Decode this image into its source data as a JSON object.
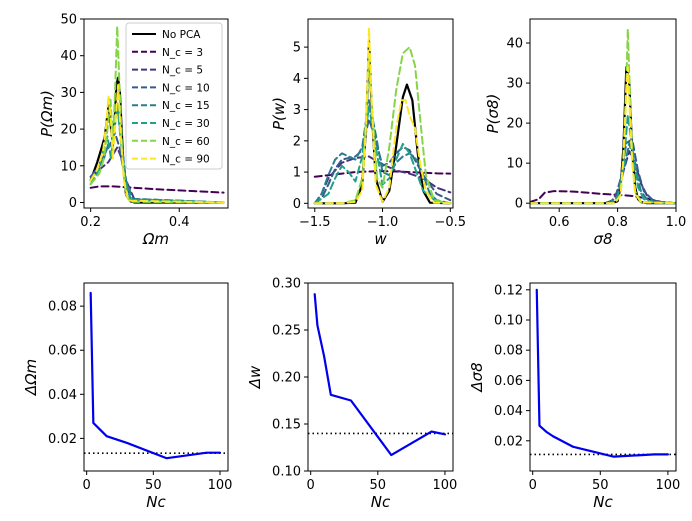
{
  "chart_data": [
    {
      "type": "line",
      "ylabel": "P(Ωm)",
      "xlabel": "Ωm",
      "xlim": [
        0.185,
        0.51
      ],
      "ylim": [
        -1.5,
        50
      ],
      "xticks": [
        0.2,
        0.4
      ],
      "xtick_labels": [
        "0.2",
        "0.4"
      ],
      "yticks": [
        0,
        10,
        20,
        30,
        40,
        50
      ],
      "ytick_labels": [
        "0",
        "10",
        "20",
        "30",
        "40",
        "50"
      ],
      "legend": {
        "placement": "top-right"
      },
      "series": [
        {
          "name": "No PCA",
          "color": "#000000",
          "style": "solid",
          "x": [
            0.2,
            0.215,
            0.225,
            0.232,
            0.238,
            0.242,
            0.246,
            0.25,
            0.254,
            0.258,
            0.262,
            0.266,
            0.27,
            0.275,
            0.28,
            0.29,
            0.3,
            0.32,
            0.5
          ],
          "y": [
            6,
            11,
            15,
            18,
            24,
            28,
            20,
            16,
            22,
            32,
            34,
            30,
            20,
            8,
            2,
            0.3,
            0,
            0,
            0
          ]
        },
        {
          "name": "N_c = 3",
          "color": "#440154",
          "style": "dashed",
          "x": [
            0.2,
            0.22,
            0.25,
            0.3,
            0.35,
            0.4,
            0.45,
            0.5
          ],
          "y": [
            4,
            4.4,
            4.4,
            4,
            3.6,
            3.3,
            3,
            2.7
          ]
        },
        {
          "name": "N_c = 5",
          "color": "#46337e",
          "style": "dashed",
          "x": [
            0.2,
            0.22,
            0.24,
            0.25,
            0.26,
            0.27,
            0.28,
            0.3,
            0.5
          ],
          "y": [
            7,
            9,
            11,
            13,
            15,
            12,
            6,
            0.5,
            0
          ]
        },
        {
          "name": "N_c = 10",
          "color": "#365c8d",
          "style": "dashed",
          "x": [
            0.2,
            0.22,
            0.235,
            0.245,
            0.255,
            0.265,
            0.275,
            0.29,
            0.5
          ],
          "y": [
            7,
            10,
            14,
            16,
            19,
            15,
            8,
            1,
            0
          ]
        },
        {
          "name": "N_c = 15",
          "color": "#277f8e",
          "style": "dashed",
          "x": [
            0.2,
            0.215,
            0.23,
            0.24,
            0.25,
            0.26,
            0.27,
            0.28,
            0.295,
            0.5
          ],
          "y": [
            6,
            9,
            12,
            16,
            15,
            27,
            16,
            6,
            1,
            0
          ]
        },
        {
          "name": "N_c = 30",
          "color": "#1fa187",
          "style": "dashed",
          "x": [
            0.2,
            0.215,
            0.228,
            0.238,
            0.246,
            0.253,
            0.26,
            0.268,
            0.278,
            0.29,
            0.5
          ],
          "y": [
            5,
            8,
            14,
            18,
            12,
            20,
            27,
            17,
            6,
            0.8,
            0
          ]
        },
        {
          "name": "N_c = 60",
          "color": "#86d549",
          "style": "dashed",
          "x": [
            0.2,
            0.22,
            0.23,
            0.238,
            0.245,
            0.25,
            0.255,
            0.26,
            0.265,
            0.272,
            0.28,
            0.29,
            0.5
          ],
          "y": [
            5,
            8,
            12,
            20,
            28,
            16,
            30,
            48,
            32,
            12,
            2,
            0.2,
            0
          ]
        },
        {
          "name": "N_c = 90",
          "color": "#fde725",
          "style": "dashed",
          "x": [
            0.2,
            0.215,
            0.228,
            0.236,
            0.24,
            0.245,
            0.25,
            0.256,
            0.262,
            0.268,
            0.275,
            0.285,
            0.5
          ],
          "y": [
            6,
            9,
            14,
            22,
            29,
            24,
            12,
            22,
            32,
            18,
            6,
            0.5,
            0
          ]
        }
      ]
    },
    {
      "type": "line",
      "ylabel": "P(w)",
      "xlabel": "w",
      "xlim": [
        -1.55,
        -0.48
      ],
      "ylim": [
        -0.15,
        5.9
      ],
      "xticks": [
        -1.5,
        -1.0,
        -0.5
      ],
      "xtick_labels": [
        "−1.5",
        "−1.0",
        "−0.5"
      ],
      "yticks": [
        0,
        1,
        2,
        3,
        4,
        5
      ],
      "ytick_labels": [
        "0",
        "1",
        "2",
        "3",
        "4",
        "5"
      ],
      "series": [
        {
          "name": "No PCA",
          "color": "#000000",
          "style": "solid",
          "x": [
            -1.5,
            -1.3,
            -1.2,
            -1.15,
            -1.12,
            -1.1,
            -1.08,
            -1.05,
            -1.0,
            -0.95,
            -0.9,
            -0.85,
            -0.82,
            -0.78,
            -0.74,
            -0.7,
            -0.65,
            -0.5
          ],
          "y": [
            0,
            0,
            0.02,
            0.6,
            2.5,
            5.2,
            3,
            0.8,
            0.05,
            0.4,
            1.8,
            3.4,
            3.8,
            3.3,
            1.6,
            0.4,
            0.02,
            0
          ]
        },
        {
          "name": "N_c = 3",
          "color": "#440154",
          "style": "dashed",
          "x": [
            -1.5,
            -1.4,
            -1.3,
            -1.2,
            -1.1,
            -1.0,
            -0.9,
            -0.8,
            -0.7,
            -0.6,
            -0.5
          ],
          "y": [
            0.85,
            0.9,
            0.95,
            1.0,
            1.02,
            1.03,
            1.02,
            1.0,
            0.98,
            0.96,
            0.95
          ]
        },
        {
          "name": "N_c = 5",
          "color": "#46337e",
          "style": "dashed",
          "x": [
            -1.5,
            -1.45,
            -1.4,
            -1.3,
            -1.2,
            -1.1,
            -1.0,
            -0.9,
            -0.8,
            -0.7,
            -0.6,
            -0.5
          ],
          "y": [
            0,
            0.3,
            0.8,
            1.3,
            1.45,
            1.5,
            1.25,
            1.05,
            0.95,
            0.8,
            0.5,
            0.35
          ]
        },
        {
          "name": "N_c = 10",
          "color": "#365c8d",
          "style": "dashed",
          "x": [
            -1.5,
            -1.45,
            -1.4,
            -1.35,
            -1.3,
            -1.2,
            -1.15,
            -1.1,
            -1.05,
            -1.0,
            -0.95,
            -0.9,
            -0.85,
            -0.8,
            -0.75,
            -0.7,
            -0.6,
            -0.5
          ],
          "y": [
            0,
            0.15,
            0.6,
            1.1,
            1.4,
            1.5,
            1.7,
            2.7,
            2.0,
            1.2,
            1.3,
            1.6,
            1.8,
            1.7,
            1.3,
            0.9,
            0.3,
            0.1
          ]
        },
        {
          "name": "N_c = 15",
          "color": "#277f8e",
          "style": "dashed",
          "x": [
            -1.5,
            -1.45,
            -1.4,
            -1.35,
            -1.3,
            -1.25,
            -1.2,
            -1.15,
            -1.1,
            -1.05,
            -1.0,
            -0.95,
            -0.9,
            -0.85,
            -0.8,
            -0.75,
            -0.7,
            -0.65,
            -0.6,
            -0.5
          ],
          "y": [
            0,
            0.3,
            0.9,
            1.4,
            1.6,
            1.5,
            1.4,
            1.8,
            3.3,
            2.2,
            1.0,
            0.9,
            1.3,
            1.5,
            1.6,
            1.4,
            0.9,
            0.3,
            0.1,
            0
          ]
        },
        {
          "name": "N_c = 30",
          "color": "#1fa187",
          "style": "dashed",
          "x": [
            -1.5,
            -1.4,
            -1.35,
            -1.3,
            -1.25,
            -1.2,
            -1.15,
            -1.1,
            -1.05,
            -1.0,
            -0.95,
            -0.9,
            -0.85,
            -0.8,
            -0.75,
            -0.7,
            -0.6,
            -0.5
          ],
          "y": [
            0,
            0.3,
            0.8,
            1.2,
            1.0,
            0.7,
            1.5,
            3.1,
            1.8,
            0.6,
            0.8,
            1.4,
            1.9,
            1.6,
            1.0,
            0.4,
            0.05,
            0
          ]
        },
        {
          "name": "N_c = 60",
          "color": "#86d549",
          "style": "dashed",
          "x": [
            -1.5,
            -1.3,
            -1.2,
            -1.15,
            -1.12,
            -1.1,
            -1.08,
            -1.04,
            -1.0,
            -0.95,
            -0.9,
            -0.85,
            -0.8,
            -0.76,
            -0.72,
            -0.68,
            -0.62,
            -0.5
          ],
          "y": [
            0,
            0,
            0.1,
            0.8,
            2.8,
            4.8,
            3.2,
            0.8,
            0.5,
            1.8,
            3.6,
            4.8,
            5.0,
            4.4,
            2.6,
            0.9,
            0.1,
            0
          ]
        },
        {
          "name": "N_c = 90",
          "color": "#fde725",
          "style": "dashed",
          "x": [
            -1.5,
            -1.3,
            -1.2,
            -1.15,
            -1.12,
            -1.1,
            -1.08,
            -1.05,
            -1.0,
            -0.95,
            -0.9,
            -0.86,
            -0.83,
            -0.8,
            -0.76,
            -0.72,
            -0.68,
            -0.62,
            -0.5
          ],
          "y": [
            0,
            0,
            0.05,
            0.4,
            2.6,
            5.6,
            3.2,
            0.6,
            0.05,
            0.5,
            2.4,
            3.3,
            3.3,
            2.8,
            2.4,
            1.2,
            0.4,
            0.02,
            0
          ]
        }
      ]
    },
    {
      "type": "line",
      "ylabel": "P(σ8)",
      "xlabel": "σ8",
      "xlim": [
        0.5,
        1.0
      ],
      "ylim": [
        -1.2,
        46
      ],
      "xticks": [
        0.6,
        0.8,
        1.0
      ],
      "xtick_labels": [
        "0.6",
        "0.8",
        "1.0"
      ],
      "yticks": [
        0,
        10,
        20,
        30,
        40
      ],
      "ytick_labels": [
        "0",
        "10",
        "20",
        "30",
        "40"
      ],
      "series": [
        {
          "name": "No PCA",
          "color": "#000000",
          "style": "solid",
          "x": [
            0.5,
            0.78,
            0.8,
            0.81,
            0.82,
            0.83,
            0.84,
            0.85,
            0.86,
            0.87,
            0.88,
            0.9,
            1.0
          ],
          "y": [
            0,
            0,
            0.5,
            4,
            14,
            34,
            30,
            13,
            4,
            1,
            0.3,
            0,
            0
          ]
        },
        {
          "name": "N_c = 3",
          "color": "#440154",
          "style": "dashed",
          "x": [
            0.5,
            0.53,
            0.55,
            0.58,
            0.6,
            0.65,
            0.7,
            0.75,
            0.8,
            0.85,
            0.9,
            0.95,
            1.0
          ],
          "y": [
            0.3,
            1,
            2.6,
            3,
            3,
            2.9,
            2.6,
            2.3,
            2.1,
            1.8,
            1.2,
            0.3,
            0
          ]
        },
        {
          "name": "N_c = 5",
          "color": "#46337e",
          "style": "dashed",
          "x": [
            0.5,
            0.75,
            0.78,
            0.8,
            0.82,
            0.84,
            0.86,
            0.88,
            0.9,
            0.92,
            0.95,
            1.0
          ],
          "y": [
            0,
            0,
            0.5,
            3,
            8,
            13,
            10,
            5,
            2,
            0.8,
            0.2,
            0
          ]
        },
        {
          "name": "N_c = 10",
          "color": "#365c8d",
          "style": "dashed",
          "x": [
            0.5,
            0.76,
            0.79,
            0.81,
            0.83,
            0.85,
            0.87,
            0.89,
            0.92,
            0.95,
            1.0
          ],
          "y": [
            0,
            0,
            1,
            6,
            15,
            16,
            8,
            3,
            0.8,
            0.2,
            0
          ]
        },
        {
          "name": "N_c = 15",
          "color": "#277f8e",
          "style": "dashed",
          "x": [
            0.5,
            0.77,
            0.8,
            0.82,
            0.84,
            0.86,
            0.88,
            0.9,
            0.94,
            1.0
          ],
          "y": [
            0,
            0,
            1.5,
            8,
            15,
            9,
            3,
            1,
            0.1,
            0
          ]
        },
        {
          "name": "N_c = 30",
          "color": "#1fa187",
          "style": "dashed",
          "x": [
            0.5,
            0.78,
            0.8,
            0.82,
            0.835,
            0.85,
            0.87,
            0.89,
            0.92,
            1.0
          ],
          "y": [
            0,
            0,
            1.5,
            9,
            22,
            14,
            4,
            1,
            0.2,
            0
          ]
        },
        {
          "name": "N_c = 60",
          "color": "#86d549",
          "style": "dashed",
          "x": [
            0.5,
            0.79,
            0.81,
            0.82,
            0.83,
            0.835,
            0.84,
            0.85,
            0.86,
            0.88,
            1.0
          ],
          "y": [
            0,
            0,
            2,
            12,
            30,
            43.5,
            32,
            12,
            3,
            0.3,
            0
          ]
        },
        {
          "name": "N_c = 90",
          "color": "#fde725",
          "style": "dashed",
          "x": [
            0.5,
            0.79,
            0.81,
            0.82,
            0.83,
            0.835,
            0.84,
            0.85,
            0.86,
            0.88,
            1.0
          ],
          "y": [
            0,
            0,
            2,
            11,
            28,
            34,
            26,
            10,
            2.5,
            0.2,
            0
          ]
        }
      ]
    },
    {
      "type": "line",
      "ylabel": "ΔΩm",
      "xlabel": "Nc",
      "xlim": [
        -2,
        106
      ],
      "ylim": [
        0.0052,
        0.0905
      ],
      "xticks": [
        0,
        50,
        100
      ],
      "xtick_labels": [
        "0",
        "50",
        "100"
      ],
      "yticks": [
        0.02,
        0.04,
        0.06,
        0.08
      ],
      "ytick_labels": [
        "0.02",
        "0.04",
        "0.06",
        "0.08"
      ],
      "series": [
        {
          "name": "",
          "color": "#0000ee",
          "style": "solid",
          "x": [
            3,
            5,
            10,
            15,
            30,
            60,
            90,
            100
          ],
          "y": [
            0.086,
            0.027,
            0.024,
            0.021,
            0.018,
            0.011,
            0.0135,
            0.0135
          ]
        }
      ],
      "reference_line": {
        "y": 0.0133,
        "color": "#000000",
        "style": "dotted"
      }
    },
    {
      "type": "line",
      "ylabel": "Δw",
      "xlabel": "Nc",
      "xlim": [
        -2,
        106
      ],
      "ylim": [
        0.1,
        0.3
      ],
      "xticks": [
        0,
        50,
        100
      ],
      "xtick_labels": [
        "0",
        "50",
        "100"
      ],
      "yticks": [
        0.1,
        0.15,
        0.2,
        0.25,
        0.3
      ],
      "ytick_labels": [
        "0.10",
        "0.15",
        "0.20",
        "0.25",
        "0.30"
      ],
      "series": [
        {
          "name": "",
          "color": "#0000ee",
          "style": "solid",
          "x": [
            3,
            5,
            10,
            15,
            30,
            60,
            90,
            100
          ],
          "y": [
            0.288,
            0.255,
            0.222,
            0.181,
            0.175,
            0.117,
            0.142,
            0.139
          ]
        }
      ],
      "reference_line": {
        "y": 0.14,
        "color": "#000000",
        "style": "dotted"
      }
    },
    {
      "type": "line",
      "ylabel": "Δσ8",
      "xlabel": "Nc",
      "xlim": [
        -2,
        106
      ],
      "ylim": [
        0.0,
        0.1245
      ],
      "xticks": [
        0,
        50,
        100
      ],
      "xtick_labels": [
        "0",
        "50",
        "100"
      ],
      "yticks": [
        0.02,
        0.04,
        0.06,
        0.08,
        0.1,
        0.12
      ],
      "ytick_labels": [
        "0.02",
        "0.04",
        "0.06",
        "0.08",
        "0.10",
        "0.12"
      ],
      "series": [
        {
          "name": "",
          "color": "#0000ee",
          "style": "solid",
          "x": [
            3,
            5,
            10,
            15,
            30,
            60,
            90,
            100
          ],
          "y": [
            0.12,
            0.03,
            0.026,
            0.023,
            0.016,
            0.0095,
            0.011,
            0.011
          ]
        }
      ],
      "reference_line": {
        "y": 0.011,
        "color": "#000000",
        "style": "dotted"
      }
    }
  ]
}
